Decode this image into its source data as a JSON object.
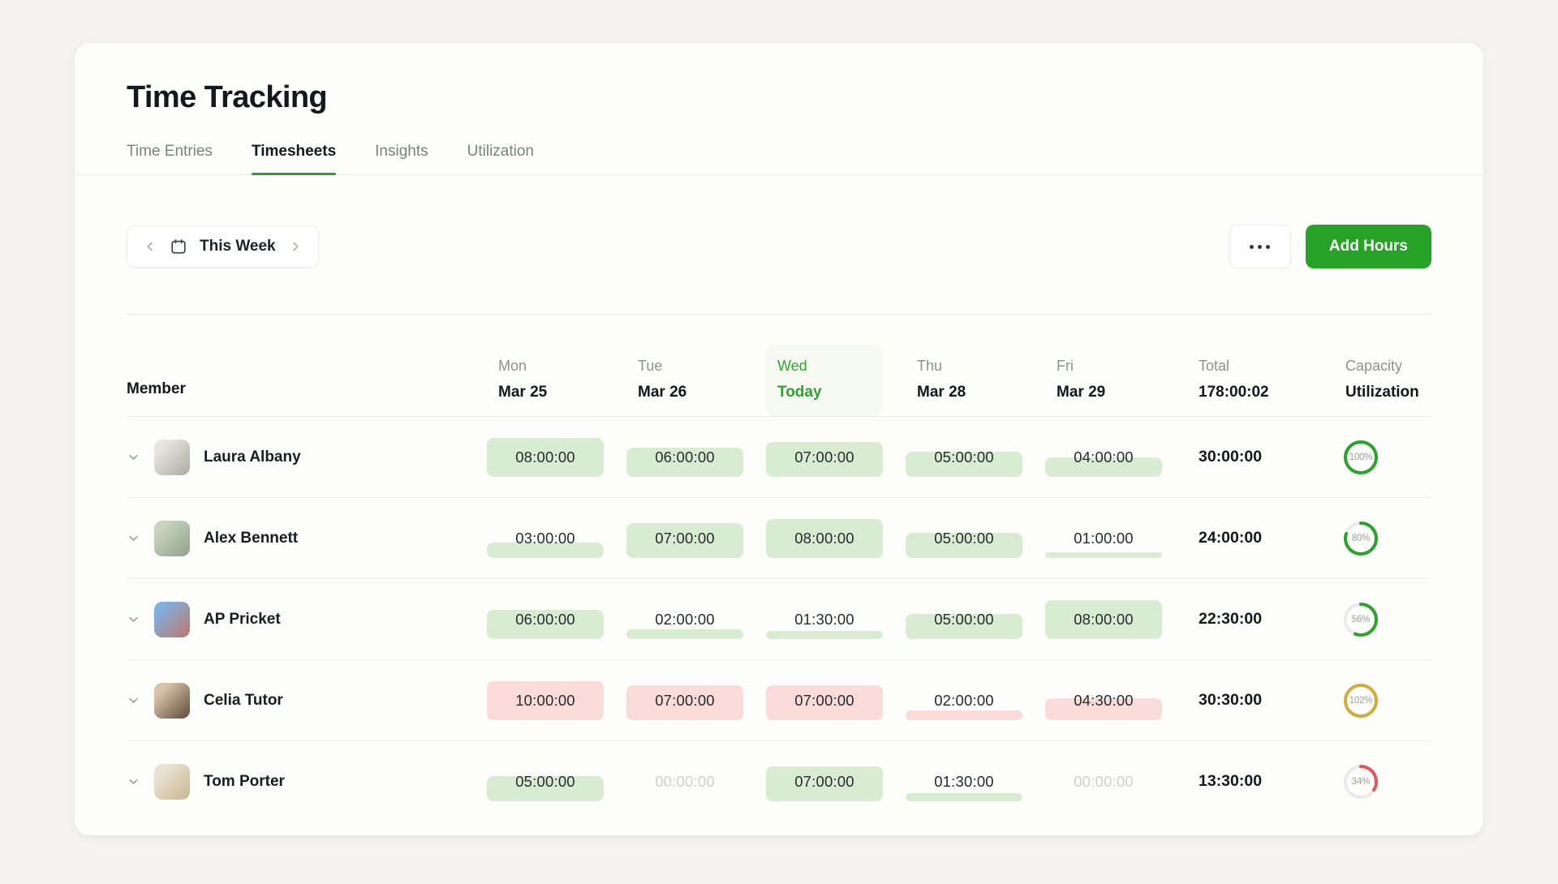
{
  "window": {
    "title": "Time Tracking"
  },
  "tabs": [
    {
      "label": "Time Entries",
      "active": false
    },
    {
      "label": "Timesheets",
      "active": true
    },
    {
      "label": "Insights",
      "active": false
    },
    {
      "label": "Utilization",
      "active": false
    }
  ],
  "toolbar": {
    "week_label": "This Week",
    "add_hours_label": "Add Hours"
  },
  "table": {
    "member_header": "Member",
    "day_columns": [
      {
        "day": "Mon",
        "date": "Mar 25",
        "today": false
      },
      {
        "day": "Tue",
        "date": "Mar 26",
        "today": false
      },
      {
        "day": "Wed",
        "date": "Today",
        "today": true
      },
      {
        "day": "Thu",
        "date": "Mar 28",
        "today": false
      },
      {
        "day": "Fri",
        "date": "Mar 29",
        "today": false
      }
    ],
    "total_header": "Total",
    "total_value": "178:00:02",
    "capacity_header": "Capacity",
    "capacity_subheader": "Utilization",
    "rows": [
      {
        "name": "Laura Albany",
        "avatar": [
          "#e9e5df",
          "#a9aba0"
        ],
        "cells": [
          {
            "value": "08:00:00",
            "fill": 100,
            "state": "green"
          },
          {
            "value": "06:00:00",
            "fill": 75,
            "state": "green"
          },
          {
            "value": "07:00:00",
            "fill": 88,
            "state": "green"
          },
          {
            "value": "05:00:00",
            "fill": 63,
            "state": "green"
          },
          {
            "value": "04:00:00",
            "fill": 50,
            "state": "green"
          }
        ],
        "total": "30:00:00",
        "capacity": {
          "label": "100%",
          "pct": 100,
          "tone": "green"
        }
      },
      {
        "name": "Alex Bennett",
        "avatar": [
          "#c9d4c1",
          "#8fa288"
        ],
        "cells": [
          {
            "value": "03:00:00",
            "fill": 38,
            "state": "green"
          },
          {
            "value": "07:00:00",
            "fill": 88,
            "state": "green"
          },
          {
            "value": "08:00:00",
            "fill": 100,
            "state": "green"
          },
          {
            "value": "05:00:00",
            "fill": 63,
            "state": "green"
          },
          {
            "value": "01:00:00",
            "fill": 13,
            "state": "green"
          }
        ],
        "total": "24:00:00",
        "capacity": {
          "label": "80%",
          "pct": 80,
          "tone": "green"
        }
      },
      {
        "name": "AP Pricket",
        "avatar": [
          "#7fb1df",
          "#c07668"
        ],
        "cells": [
          {
            "value": "06:00:00",
            "fill": 75,
            "state": "green"
          },
          {
            "value": "02:00:00",
            "fill": 25,
            "state": "green"
          },
          {
            "value": "01:30:00",
            "fill": 19,
            "state": "green"
          },
          {
            "value": "05:00:00",
            "fill": 63,
            "state": "green"
          },
          {
            "value": "08:00:00",
            "fill": 100,
            "state": "green"
          }
        ],
        "total": "22:30:00",
        "capacity": {
          "label": "56%",
          "pct": 56,
          "tone": "green"
        }
      },
      {
        "name": "Celia Tutor",
        "avatar": [
          "#d9c3a8",
          "#5f4a3a"
        ],
        "cells": [
          {
            "value": "10:00:00",
            "fill": 100,
            "state": "red"
          },
          {
            "value": "07:00:00",
            "fill": 88,
            "state": "red"
          },
          {
            "value": "07:00:00",
            "fill": 88,
            "state": "red"
          },
          {
            "value": "02:00:00",
            "fill": 25,
            "state": "red"
          },
          {
            "value": "04:30:00",
            "fill": 56,
            "state": "red"
          }
        ],
        "total": "30:30:00",
        "capacity": {
          "label": "102%",
          "pct": 102,
          "tone": "amber"
        }
      },
      {
        "name": "Tom Porter",
        "avatar": [
          "#eae3d5",
          "#c9b88e"
        ],
        "cells": [
          {
            "value": "05:00:00",
            "fill": 63,
            "state": "green"
          },
          {
            "value": "00:00:00",
            "fill": 0,
            "state": "zero"
          },
          {
            "value": "07:00:00",
            "fill": 88,
            "state": "green"
          },
          {
            "value": "01:30:00",
            "fill": 19,
            "state": "green"
          },
          {
            "value": "00:00:00",
            "fill": 0,
            "state": "zero"
          }
        ],
        "total": "13:30:00",
        "capacity": {
          "label": "34%",
          "pct": 34,
          "tone": "red"
        }
      }
    ]
  },
  "colors": {
    "accent_green": "#26a326",
    "today_green": "#2ca32c",
    "fill_green": "#d8ecd1",
    "fill_red": "#fbdbd8",
    "ring_green": "#2aa32a",
    "ring_amber": "#cfad3a",
    "ring_red": "#e1575c",
    "ring_track": "#ebebeb"
  }
}
